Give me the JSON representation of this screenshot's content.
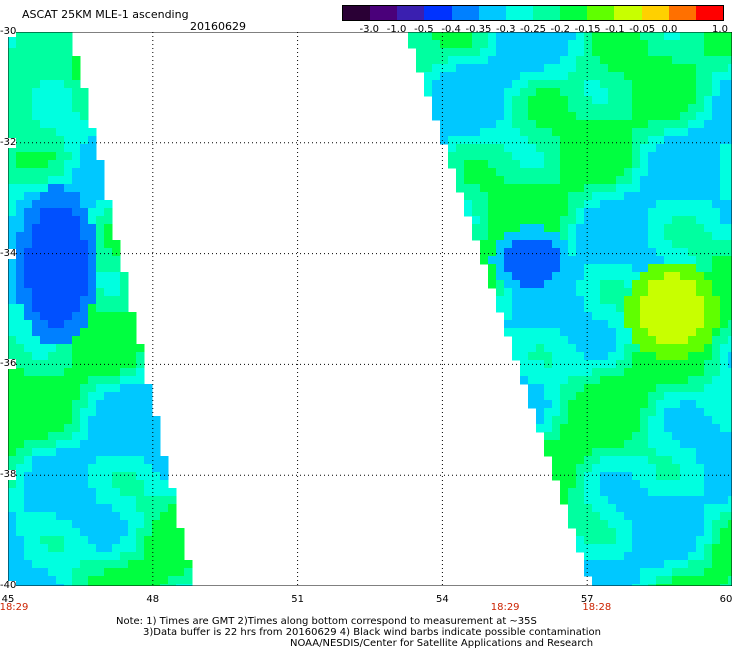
{
  "header": {
    "title": "ASCAT 25KM MLE-1 ascending",
    "date": "20160629"
  },
  "colorbar": {
    "labels": [
      "-3.0",
      "-1.0",
      "-0.5",
      "-0.4",
      "-0.35",
      "-0.3",
      "-0.25",
      "-0.2",
      "-0.15",
      "-0.1",
      "-0.05",
      "0.0",
      "1.0"
    ],
    "colors": [
      "#2a0035",
      "#4a007a",
      "#3a1fb0",
      "#0033ff",
      "#0080ff",
      "#00c8ff",
      "#00ffe0",
      "#00ffa0",
      "#00ff40",
      "#60ff00",
      "#c8ff00",
      "#ffd000",
      "#ff7000",
      "#ff0000"
    ]
  },
  "map": {
    "lat_labels": [
      "-30",
      "-32",
      "-34",
      "-36",
      "-38",
      "-40"
    ],
    "lon_labels": [
      "45",
      "48",
      "51",
      "54",
      "57",
      "60"
    ],
    "time_labels": [
      {
        "text": "18:29",
        "lon": 45.0
      },
      {
        "text": "18:29",
        "lon": 55.3
      },
      {
        "text": "18:28",
        "lon": 57.2
      }
    ],
    "lat_range": [
      -40,
      -30
    ],
    "lon_range": [
      45,
      60
    ],
    "grid": "dotted"
  },
  "notes": {
    "line1": "Note: 1) Times are GMT 2)Times along bottom correspond to measurement at ~35S",
    "line2": "3)Data buffer is 22 hrs from 20160629 4) Black wind barbs indicate possible contamination",
    "line3": "NOAA/NESDIS/Center for Satellite Applications and Research"
  }
}
